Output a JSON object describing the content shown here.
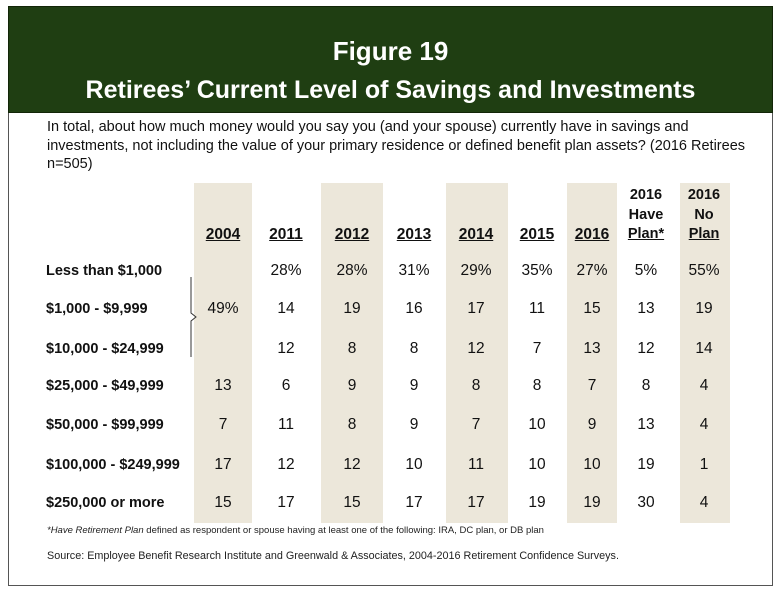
{
  "figure": {
    "number": "Figure 19",
    "title": "Retirees’ Current Level of Savings and Investments"
  },
  "question": "In total, about how much money would you say you (and your spouse) currently have in savings and investments, not including the value of your primary residence or defined benefit plan assets? (2016 Retirees n=505)",
  "chart_data": {
    "type": "table",
    "columns": [
      {
        "key": "2004",
        "label": "2004"
      },
      {
        "key": "2011",
        "label": "2011"
      },
      {
        "key": "2012",
        "label": "2012"
      },
      {
        "key": "2013",
        "label": "2013"
      },
      {
        "key": "2014",
        "label": "2014"
      },
      {
        "key": "2015",
        "label": "2015"
      },
      {
        "key": "2016",
        "label": "2016"
      },
      {
        "key": "2016_have_plan",
        "label_lines": [
          "2016",
          "Have",
          "Plan*"
        ]
      },
      {
        "key": "2016_no_plan",
        "label_lines": [
          "2016",
          "No",
          "Plan"
        ]
      }
    ],
    "rows": [
      {
        "label": "Less than $1,000",
        "values": [
          "",
          "28%",
          "28%",
          "31%",
          "29%",
          "35%",
          "27%",
          "5%",
          "55%"
        ]
      },
      {
        "label": "$1,000 - $9,999",
        "values": [
          "49%",
          "14",
          "19",
          "16",
          "17",
          "11",
          "15",
          "13",
          "19"
        ]
      },
      {
        "label": "$10,000 - $24,999",
        "values": [
          "",
          "12",
          "8",
          "8",
          "12",
          "7",
          "13",
          "12",
          "14"
        ]
      },
      {
        "label": "$25,000 - $49,999",
        "values": [
          "13",
          "6",
          "9",
          "9",
          "8",
          "8",
          "7",
          "8",
          "4"
        ]
      },
      {
        "label": "$50,000 - $99,999",
        "values": [
          "7",
          "11",
          "8",
          "9",
          "7",
          "10",
          "9",
          "13",
          "4"
        ]
      },
      {
        "label": "$100,000 - $249,999",
        "values": [
          "17",
          "12",
          "12",
          "10",
          "11",
          "10",
          "10",
          "19",
          "1"
        ]
      },
      {
        "label": "$250,000 or more",
        "values": [
          "15",
          "17",
          "15",
          "17",
          "17",
          "19",
          "19",
          "30",
          "4"
        ]
      }
    ],
    "note": "2004 value 49% spans the three rows under $25,000"
  },
  "footnote": {
    "italic": "*Have Retirement Plan",
    "rest": " defined as respondent or spouse having at least one of the following: IRA, DC plan, or DB plan"
  },
  "source": "Source:  Employee Benefit Research Institute and Greenwald & Associates, 2004-2016 Retirement Confidence Surveys.",
  "colors": {
    "title_bg": "#1f3e12",
    "shade": "#ece7da"
  }
}
